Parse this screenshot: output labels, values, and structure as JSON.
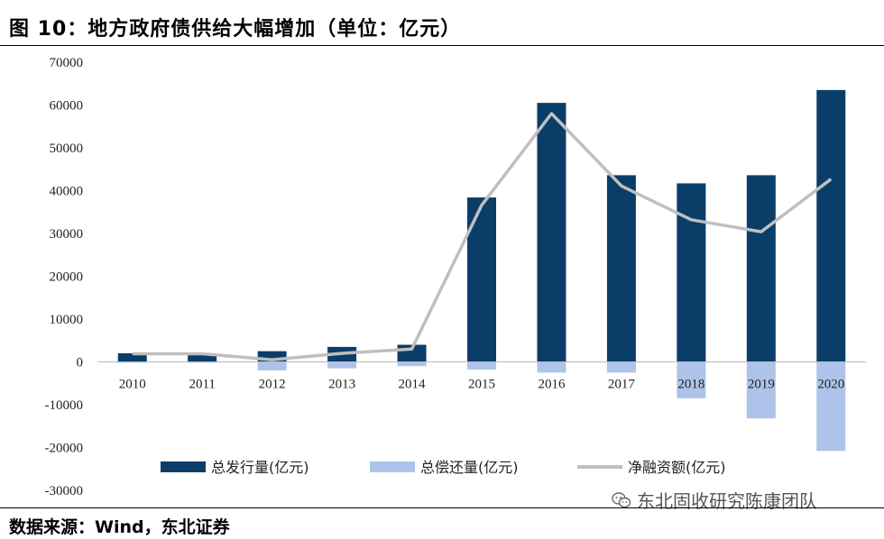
{
  "header": {
    "title": "图 10：地方政府债供给大幅增加（单位：亿元）"
  },
  "footer": {
    "source": "数据来源：Wind，东北证券"
  },
  "watermark": {
    "text": "东北固收研究陈康团队",
    "icon": "wechat-icon"
  },
  "colors": {
    "issue": "#0b3d69",
    "repay": "#aec3ea",
    "net": "#bfbfbf"
  },
  "chart_data": {
    "type": "bar",
    "title": "",
    "xlabel": "",
    "ylabel": "",
    "categories": [
      "2010",
      "2011",
      "2012",
      "2013",
      "2014",
      "2015",
      "2016",
      "2017",
      "2018",
      "2019",
      "2020"
    ],
    "ylim": [
      -30000,
      70000
    ],
    "yticks": [
      "70000",
      "60000",
      "50000",
      "40000",
      "30000",
      "20000",
      "10000",
      "0",
      "-10000",
      "-20000",
      "-30000"
    ],
    "grid": false,
    "legend_position": "bottom",
    "series": [
      {
        "name": "总发行量(亿元)",
        "type": "bar",
        "values": [
          2000,
          2000,
          2500,
          3500,
          4000,
          38400,
          60500,
          43600,
          41700,
          43600,
          63500
        ]
      },
      {
        "name": "总偿还量(亿元)",
        "type": "bar",
        "values": [
          -100,
          -100,
          -2000,
          -1500,
          -1000,
          -1800,
          -2500,
          -2500,
          -8500,
          -13200,
          -20800
        ]
      },
      {
        "name": "净融资额(亿元)",
        "type": "line",
        "values": [
          1900,
          1900,
          500,
          2000,
          3000,
          36600,
          58000,
          41100,
          33200,
          30400,
          42700
        ]
      }
    ]
  }
}
